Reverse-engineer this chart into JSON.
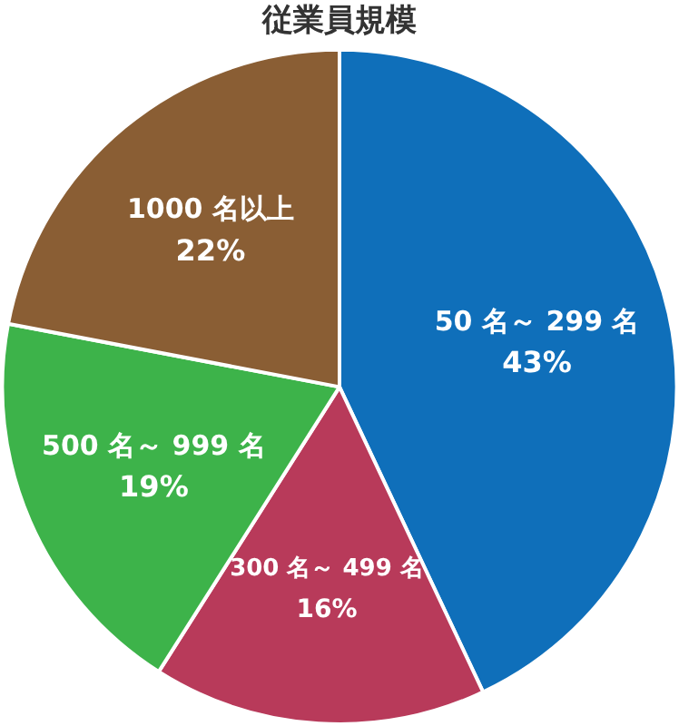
{
  "chart_data": {
    "type": "pie",
    "title": "従業員規模",
    "categories": [
      "50 名～ 299 名",
      "300 名～ 499 名",
      "500 名～ 999 名",
      "1000 名以上"
    ],
    "values": [
      43,
      16,
      19,
      22
    ],
    "value_labels": [
      "43%",
      "16%",
      "19%",
      "22%"
    ],
    "colors": [
      "#0f6fba",
      "#b83a5a",
      "#3db34a",
      "#8a5e34"
    ],
    "legend": false
  }
}
